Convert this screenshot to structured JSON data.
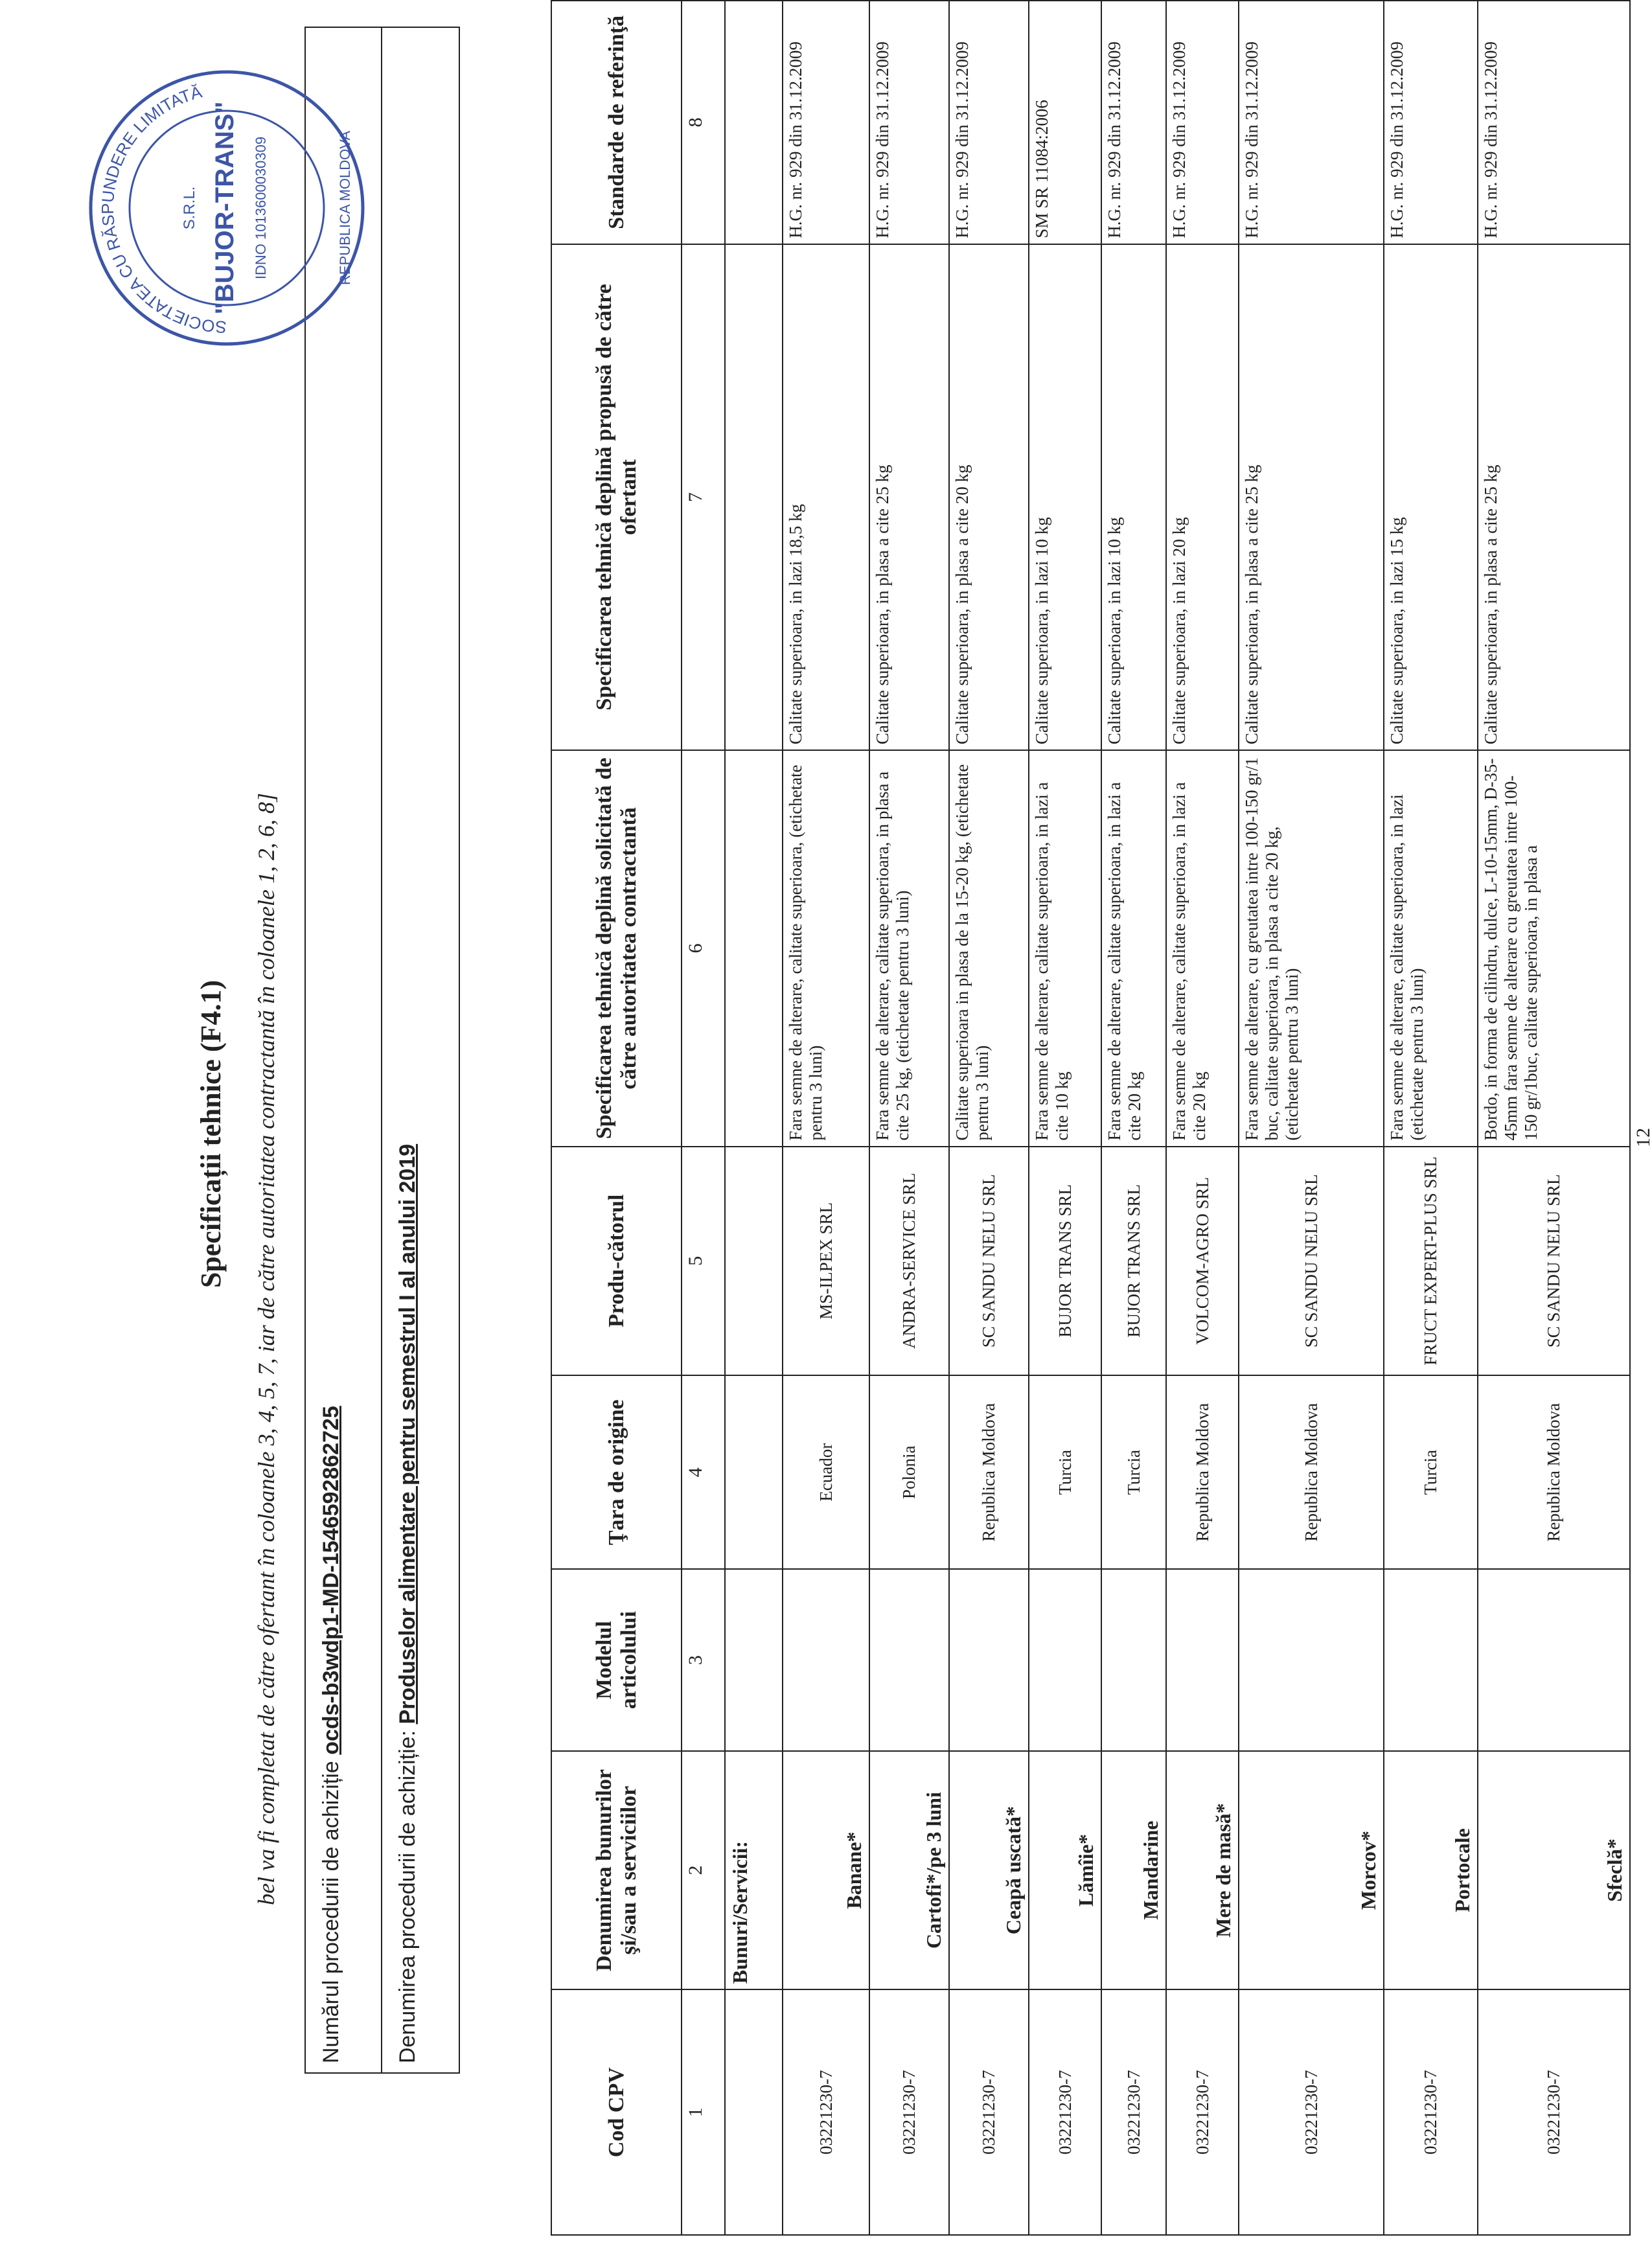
{
  "header": {
    "title": "Specificații tehnice (F4.1)",
    "subtitle": "bel va fi completat de către ofertant în coloanele 3, 4, 5, 7, iar de către autoritatea contractantă în coloanele 1, 2, 6, 8]"
  },
  "procedure": {
    "number_label": "Numărul procedurii de achiziție",
    "number": "ocds-b3wdp1-MD-1546592862725",
    "name_label": "Denumirea procedurii de achiziție:",
    "name": "Produselor alimentare pentru semestrul I al anului 2019"
  },
  "stamp": {
    "company": "SOCIETATEA CU RĂSPUNDERE LIMITATĂ",
    "name": "\"BUJOR-TRANS\"",
    "form": "S.R.L.",
    "idno": "IDNO 1013600030309",
    "country": "REPUBLICA MOLDOVA"
  },
  "table": {
    "columns": [
      "Cod CPV",
      "Denumirea bunurilor şi/sau a serviciilor",
      "Modelul articolului",
      "Ţara de origine",
      "Produ-cătorul",
      "Specificarea tehnică deplină solicitată de către autoritatea contractantă",
      "Specificarea tehnică deplină propusă de către ofertant",
      "Standarde de referinţă"
    ],
    "column_numbers": [
      1,
      2,
      3,
      4,
      5,
      6,
      7,
      8
    ],
    "section": "Bunuri/Servicii:",
    "rows": [
      {
        "cpv": "03221230-7",
        "name": "Banane*",
        "origin": "Ecuador",
        "producer": "MS-ILPEX SRL",
        "spec_required": "Fara semne de alterare, calitate superioara, (etichetate pentru 3 luni)",
        "spec_offered": "Calitate superioara, in lazi 18,5 kg",
        "standard": "H.G. nr. 929 din 31.12.2009"
      },
      {
        "cpv": "03221230-7",
        "name": "Cartofi*/pe 3 luni",
        "origin": "Polonia",
        "producer": "ANDRA-SERVICE SRL",
        "spec_required": "Fara semne de alterare, calitate superioara, in plasa a cite 25 kg, (etichetate pentru 3 luni)",
        "spec_offered": "Calitate superioara, in plasa a cite 25 kg",
        "standard": "H.G. nr. 929 din 31.12.2009"
      },
      {
        "cpv": "03221230-7",
        "name": "Ceapă uscată*",
        "origin": "Republica Moldova",
        "producer": "SC SANDU NELU SRL",
        "spec_required": "Calitate superioara in plasa de la 15-20 kg, (etichetate pentru 3 luni)",
        "spec_offered": "Calitate superioara, in plasa a cite 20 kg",
        "standard": "H.G. nr. 929 din 31.12.2009"
      },
      {
        "cpv": "03221230-7",
        "name": "Lămîie*",
        "origin": "Turcia",
        "producer": "BUJOR TRANS SRL",
        "spec_required": "Fara semne de alterare, calitate superioara, in lazi a cite 10 kg",
        "spec_offered": "Calitate superioara, in lazi 10 kg",
        "standard": "SM SR 11084:2006"
      },
      {
        "cpv": "03221230-7",
        "name": "Mandarine",
        "origin": "Turcia",
        "producer": "BUJOR TRANS SRL",
        "spec_required": "Fara semne de alterare, calitate superioara, in lazi a cite 20 kg",
        "spec_offered": "Calitate superioara, in lazi 10 kg",
        "standard": "H.G. nr. 929 din 31.12.2009"
      },
      {
        "cpv": "03221230-7",
        "name": "Mere de masă*",
        "origin": "Republica Moldova",
        "producer": "VOLCOM-AGRO SRL",
        "spec_required": "Fara semne de alterare, calitate superioara, in lazi a cite 20 kg",
        "spec_offered": "Calitate superioara, in lazi 20 kg",
        "standard": "H.G. nr. 929 din 31.12.2009"
      },
      {
        "cpv": "03221230-7",
        "name": "Morcov*",
        "origin": "Republica Moldova",
        "producer": "SC SANDU NELU SRL",
        "spec_required": "Fara semne de alterare, cu greutatea intre 100-150 gr/1 buc, calitate superioara, in plasa a cite 20 kg, (etichetate pentru 3 luni)",
        "spec_offered": "Calitate superioara, in plasa a cite 25 kg",
        "standard": "H.G. nr. 929 din 31.12.2009"
      },
      {
        "cpv": "03221230-7",
        "name": "Portocale",
        "origin": "Turcia",
        "producer": "FRUCT EXPERT-PLUS SRL",
        "spec_required": "Fara semne de alterare, calitate superioara, in lazi (etichetate pentru 3 luni)",
        "spec_offered": "Calitate superioara, in lazi 15 kg",
        "standard": "H.G. nr. 929 din 31.12.2009"
      },
      {
        "cpv": "03221230-7",
        "name": "Sfeclă*",
        "origin": "Republica Moldova",
        "producer": "SC SANDU NELU SRL",
        "spec_required": "Bordo, in forma de cilindru, dulce, L-10-15mm, D-35-45mm fara semne de alterare cu greutatea intre 100-150 gr/1buc, calitate superioara, in plasa a",
        "spec_offered": "Calitate superioara, in plasa a cite 25 kg",
        "standard": "H.G. nr. 929 din 31.12.2009"
      }
    ]
  },
  "footer": {
    "page_number": "12"
  }
}
